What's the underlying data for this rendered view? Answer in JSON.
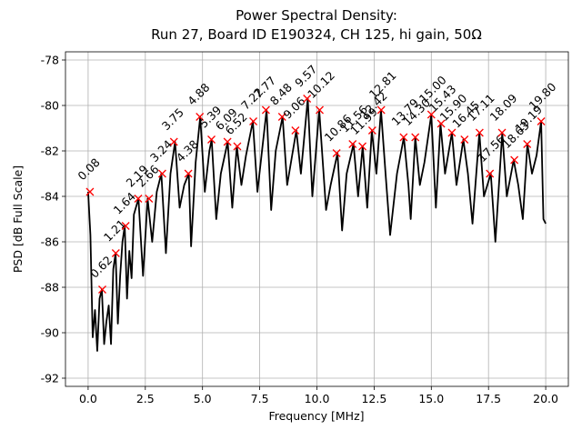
{
  "chart_data": {
    "type": "line",
    "title": "Power Spectral Density:",
    "subtitle": "Run 27, Board ID E190324, CH 125, hi gain, 50Ω",
    "x_label": "Frequency [MHz]",
    "y_label": "PSD [dB Full Scale]",
    "xlim": [
      -0.99,
      20.99
    ],
    "ylim": [
      -92.36,
      -77.64
    ],
    "xticks": [
      {
        "value": 0,
        "label": "0.0"
      },
      {
        "value": 2.5,
        "label": "2.5"
      },
      {
        "value": 5,
        "label": "5.0"
      },
      {
        "value": 7.5,
        "label": "7.5"
      },
      {
        "value": 10,
        "label": "10.0"
      },
      {
        "value": 12.5,
        "label": "12.5"
      },
      {
        "value": 15,
        "label": "15.0"
      },
      {
        "value": 17.5,
        "label": "17.5"
      },
      {
        "value": 20,
        "label": "20.0"
      }
    ],
    "yticks": [
      -92,
      -90,
      -88,
      -86,
      -84,
      -82,
      -80,
      -78
    ],
    "grid": true,
    "series": [
      {
        "color": "#000000",
        "x": [
          0,
          0.1,
          0.2,
          0.3,
          0.4,
          0.5,
          0.6,
          0.7,
          0.8,
          0.9,
          1.0,
          1.1,
          1.2,
          1.3,
          1.4,
          1.5,
          1.6,
          1.7,
          1.8,
          1.9,
          2.0,
          2.2,
          2.4,
          2.6,
          2.8,
          3.0,
          3.2,
          3.4,
          3.6,
          3.8,
          4.0,
          4.2,
          4.4,
          4.5,
          4.7,
          4.9,
          5.1,
          5.3,
          5.4,
          5.6,
          5.8,
          6.1,
          6.3,
          6.5,
          6.7,
          6.9,
          7.2,
          7.4,
          7.6,
          7.8,
          8.0,
          8.2,
          8.5,
          8.7,
          9.1,
          9.3,
          9.6,
          9.8,
          10.1,
          10.4,
          10.6,
          10.9,
          11.1,
          11.3,
          11.6,
          11.8,
          12.0,
          12.2,
          12.4,
          12.6,
          12.8,
          13.0,
          13.2,
          13.5,
          13.8,
          14.0,
          14.1,
          14.3,
          14.5,
          14.7,
          15.0,
          15.2,
          15.4,
          15.6,
          15.9,
          16.1,
          16.4,
          16.6,
          16.8,
          17.1,
          17.3,
          17.6,
          17.8,
          18.1,
          18.3,
          18.6,
          18.8,
          19.0,
          19.2,
          19.4,
          19.6,
          19.8,
          19.9,
          20.0
        ],
        "values": [
          -83.8,
          -85.7,
          -90.2,
          -89.0,
          -90.8,
          -88.5,
          -88.1,
          -90.5,
          -89.5,
          -88.8,
          -90.5,
          -87.2,
          -86.5,
          -89.6,
          -87.5,
          -86.0,
          -85.3,
          -88.5,
          -86.4,
          -87.6,
          -84.8,
          -84.1,
          -87.5,
          -84.1,
          -86.0,
          -83.8,
          -83.0,
          -86.5,
          -83.0,
          -81.6,
          -84.5,
          -83.5,
          -83.0,
          -86.2,
          -82.5,
          -80.5,
          -83.8,
          -82.0,
          -81.5,
          -85.0,
          -83.0,
          -81.6,
          -84.5,
          -81.8,
          -83.5,
          -82.2,
          -80.7,
          -83.8,
          -82.0,
          -80.2,
          -84.6,
          -82.0,
          -80.5,
          -83.5,
          -81.1,
          -83.0,
          -79.7,
          -84.0,
          -80.2,
          -84.6,
          -83.5,
          -82.1,
          -85.5,
          -83.0,
          -81.7,
          -84.0,
          -81.8,
          -84.5,
          -81.1,
          -83.0,
          -80.2,
          -83.0,
          -85.7,
          -83.0,
          -81.4,
          -83.5,
          -85.0,
          -81.4,
          -83.5,
          -82.5,
          -80.4,
          -84.5,
          -80.8,
          -83.0,
          -81.2,
          -83.5,
          -81.5,
          -83.0,
          -85.2,
          -81.2,
          -84.0,
          -83.0,
          -86.0,
          -81.2,
          -84.0,
          -82.4,
          -83.5,
          -85.0,
          -81.7,
          -83.0,
          -82.2,
          -80.7,
          -85.0,
          -85.2
        ]
      },
      {
        "color": "#ff0000",
        "marker": "x",
        "x": [
          0.08,
          0.62,
          1.21,
          1.64,
          2.19,
          2.66,
          3.24,
          3.75,
          4.38,
          4.88,
          5.39,
          6.09,
          6.52,
          7.22,
          7.77,
          8.48,
          9.06,
          9.57,
          10.12,
          10.86,
          11.56,
          11.99,
          12.42,
          12.81,
          13.79,
          14.3,
          15.0,
          15.43,
          15.9,
          16.45,
          17.11,
          17.56,
          18.09,
          18.63,
          19.19,
          19.8
        ],
        "x_labels": [
          "0.08",
          "0.62",
          "1.21",
          "1.64",
          "2.19",
          "2.66",
          "3.24",
          "3.75",
          "4.38",
          "4.88",
          "5.39",
          "6.09",
          "6.52",
          "7.22",
          "7.77",
          "8.48",
          "9.06",
          "9.57",
          "10.12",
          "10.86",
          "11.56",
          "11.99",
          "12.42",
          "12.81",
          "13.79",
          "14.30",
          "15.00",
          "15.43",
          "15.90",
          "16.45",
          "17.11",
          "17.56",
          "18.09",
          "18.63",
          "19.19",
          "19.80"
        ],
        "values": [
          -83.8,
          -88.1,
          -86.5,
          -85.3,
          -84.1,
          -84.1,
          -83.0,
          -81.6,
          -83.0,
          -80.5,
          -81.5,
          -81.6,
          -81.8,
          -80.7,
          -80.2,
          -80.5,
          -81.1,
          -79.7,
          -80.2,
          -82.1,
          -81.7,
          -81.8,
          -81.1,
          -80.2,
          -81.4,
          -81.4,
          -80.4,
          -80.8,
          -81.2,
          -81.5,
          -81.2,
          -83.0,
          -81.2,
          -82.4,
          -81.7,
          -80.7
        ]
      }
    ]
  }
}
